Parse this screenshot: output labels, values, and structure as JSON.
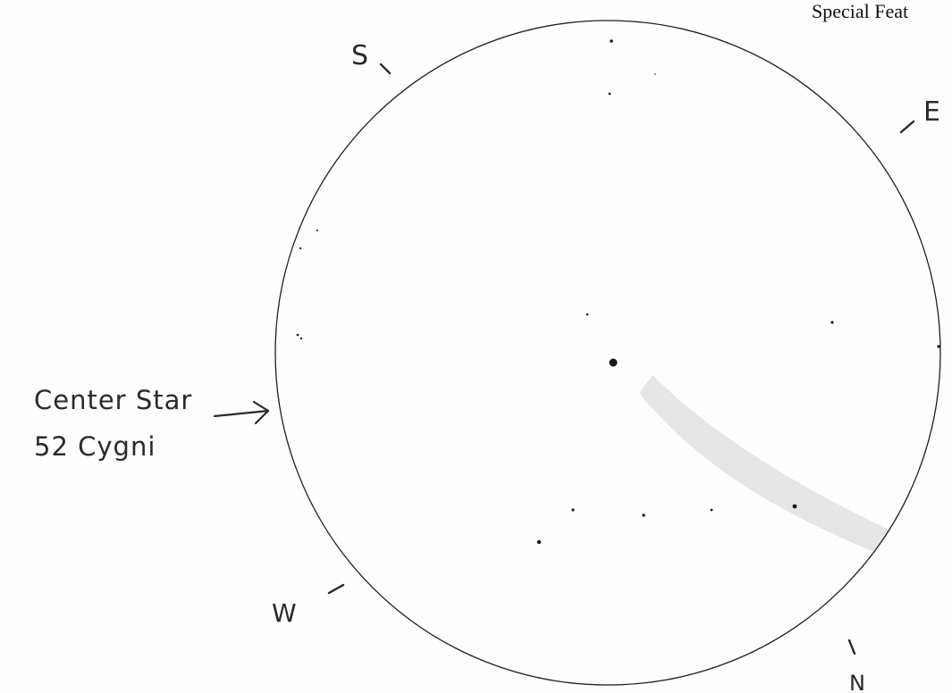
{
  "header": {
    "special_feature_label": "Special Feat"
  },
  "directions": {
    "south": "S",
    "east": "E",
    "west": "W",
    "north": "N"
  },
  "annotation": {
    "line1": "Center Star",
    "line2": "52 Cygni"
  },
  "colors": {
    "paper": "#fefefe",
    "ink": "#2a2a2a",
    "nebula": "#8c8c8c"
  }
}
